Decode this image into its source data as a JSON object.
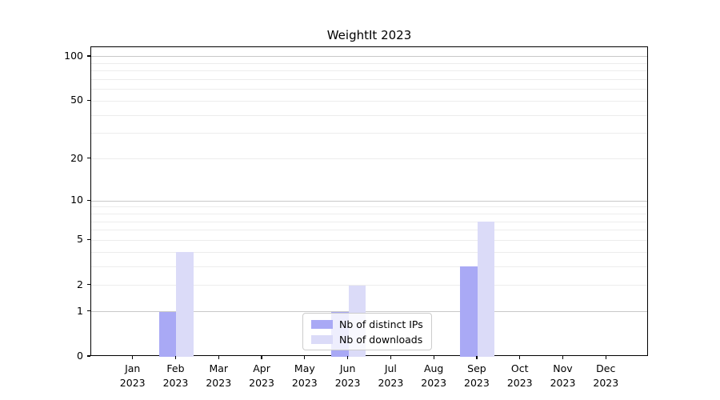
{
  "chart_data": {
    "type": "bar",
    "title": "WeightIt 2023",
    "categories": [
      "Jan",
      "Feb",
      "Mar",
      "Apr",
      "May",
      "Jun",
      "Jul",
      "Aug",
      "Sep",
      "Oct",
      "Nov",
      "Dec"
    ],
    "category_year": "2023",
    "series": [
      {
        "name": "Nb of distinct IPs",
        "color": "#a9a9f5",
        "values": [
          0,
          1,
          0,
          0,
          0,
          1,
          0,
          0,
          3,
          0,
          0,
          0
        ]
      },
      {
        "name": "Nb of downloads",
        "color": "#dbdbf8",
        "values": [
          0,
          4,
          0,
          0,
          0,
          2,
          0,
          0,
          7,
          0,
          0,
          0
        ]
      }
    ],
    "y_axis": {
      "scale": "log10(1+y)",
      "tick_labels": [
        "0",
        "1",
        "2",
        "5",
        "10",
        "20",
        "50",
        "100"
      ],
      "tick_values": [
        0,
        1,
        2,
        5,
        10,
        20,
        50,
        100
      ],
      "minor_gridlines": [
        2,
        3,
        4,
        5,
        6,
        7,
        8,
        9,
        20,
        30,
        40,
        50,
        60,
        70,
        80,
        90
      ],
      "major_gridlines": [
        1,
        10,
        100
      ],
      "max_value": 116
    },
    "legend_position": "lower center",
    "grid": true
  },
  "colors": {
    "axis": "#000000",
    "grid_minor": "#ececec",
    "grid_major": "#c9c9c9",
    "background": "#ffffff",
    "legend_border": "#cccccc"
  }
}
